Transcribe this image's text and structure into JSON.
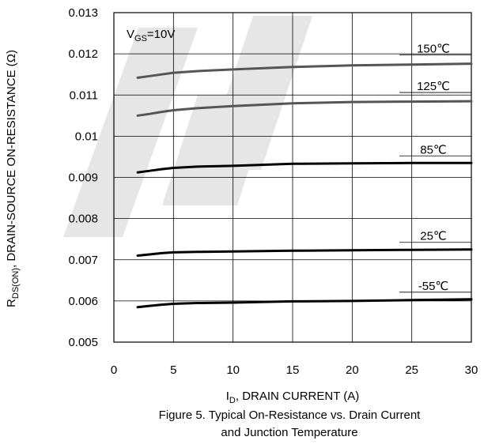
{
  "chart_data": {
    "type": "line",
    "title": "",
    "caption_line1": "Figure 5. Typical On-Resistance vs. Drain Current",
    "caption_line2": "and Junction Temperature",
    "xlabel": {
      "main": "I",
      "sub": "D",
      "rest": ", DRAIN CURRENT (A)"
    },
    "ylabel": {
      "main": "R",
      "sub": "DS(ON)",
      "rest": ", DRAIN-SOURCE ON-RESISTANCE (Ω)"
    },
    "annotation": {
      "main": "V",
      "sub": "GS",
      "rest": "=10V"
    },
    "xlim": [
      0,
      30
    ],
    "ylim": [
      0.005,
      0.013
    ],
    "x_ticks": [
      0,
      5,
      10,
      15,
      20,
      25,
      30
    ],
    "x_tick_labels": [
      "0",
      "5",
      "10",
      "15",
      "20",
      "25",
      "30"
    ],
    "y_ticks": [
      0.005,
      0.006,
      0.007,
      0.008,
      0.009,
      0.01,
      0.011,
      0.012,
      0.013
    ],
    "y_tick_labels": [
      "0.005",
      "0.006",
      "0.007",
      "0.008",
      "0.009",
      "0.01",
      "0.011",
      "0.012",
      "0.013"
    ],
    "grid": true,
    "series": [
      {
        "name": "150℃",
        "color": "#555555",
        "x": [
          2,
          3,
          4,
          5,
          7,
          10,
          15,
          20,
          25,
          30
        ],
        "y": [
          0.01142,
          0.01146,
          0.0115,
          0.01154,
          0.01158,
          0.01162,
          0.01168,
          0.01172,
          0.01174,
          0.01176
        ]
      },
      {
        "name": "125℃",
        "color": "#555555",
        "x": [
          2,
          3,
          4,
          5,
          7,
          10,
          15,
          20,
          25,
          30
        ],
        "y": [
          0.0105,
          0.01054,
          0.01059,
          0.01063,
          0.01068,
          0.01073,
          0.0108,
          0.01083,
          0.01084,
          0.01085
        ]
      },
      {
        "name": "85℃",
        "color": "#000000",
        "x": [
          2,
          3,
          4,
          5,
          7,
          10,
          15,
          20,
          25,
          30
        ],
        "y": [
          0.00912,
          0.00916,
          0.0092,
          0.00923,
          0.00926,
          0.00928,
          0.00933,
          0.00934,
          0.00935,
          0.00935
        ]
      },
      {
        "name": "25℃",
        "color": "#000000",
        "x": [
          2,
          3,
          4,
          5,
          7,
          10,
          15,
          20,
          25,
          30
        ],
        "y": [
          0.0071,
          0.00713,
          0.00716,
          0.00718,
          0.00719,
          0.0072,
          0.00722,
          0.00723,
          0.00724,
          0.00725
        ]
      },
      {
        "name": "-55℃",
        "color": "#000000",
        "x": [
          2,
          3,
          4,
          5,
          7,
          10,
          15,
          20,
          25,
          30
        ],
        "y": [
          0.00585,
          0.00588,
          0.00591,
          0.00593,
          0.00595,
          0.00596,
          0.00599,
          0.006,
          0.00602,
          0.00604
        ]
      }
    ]
  }
}
